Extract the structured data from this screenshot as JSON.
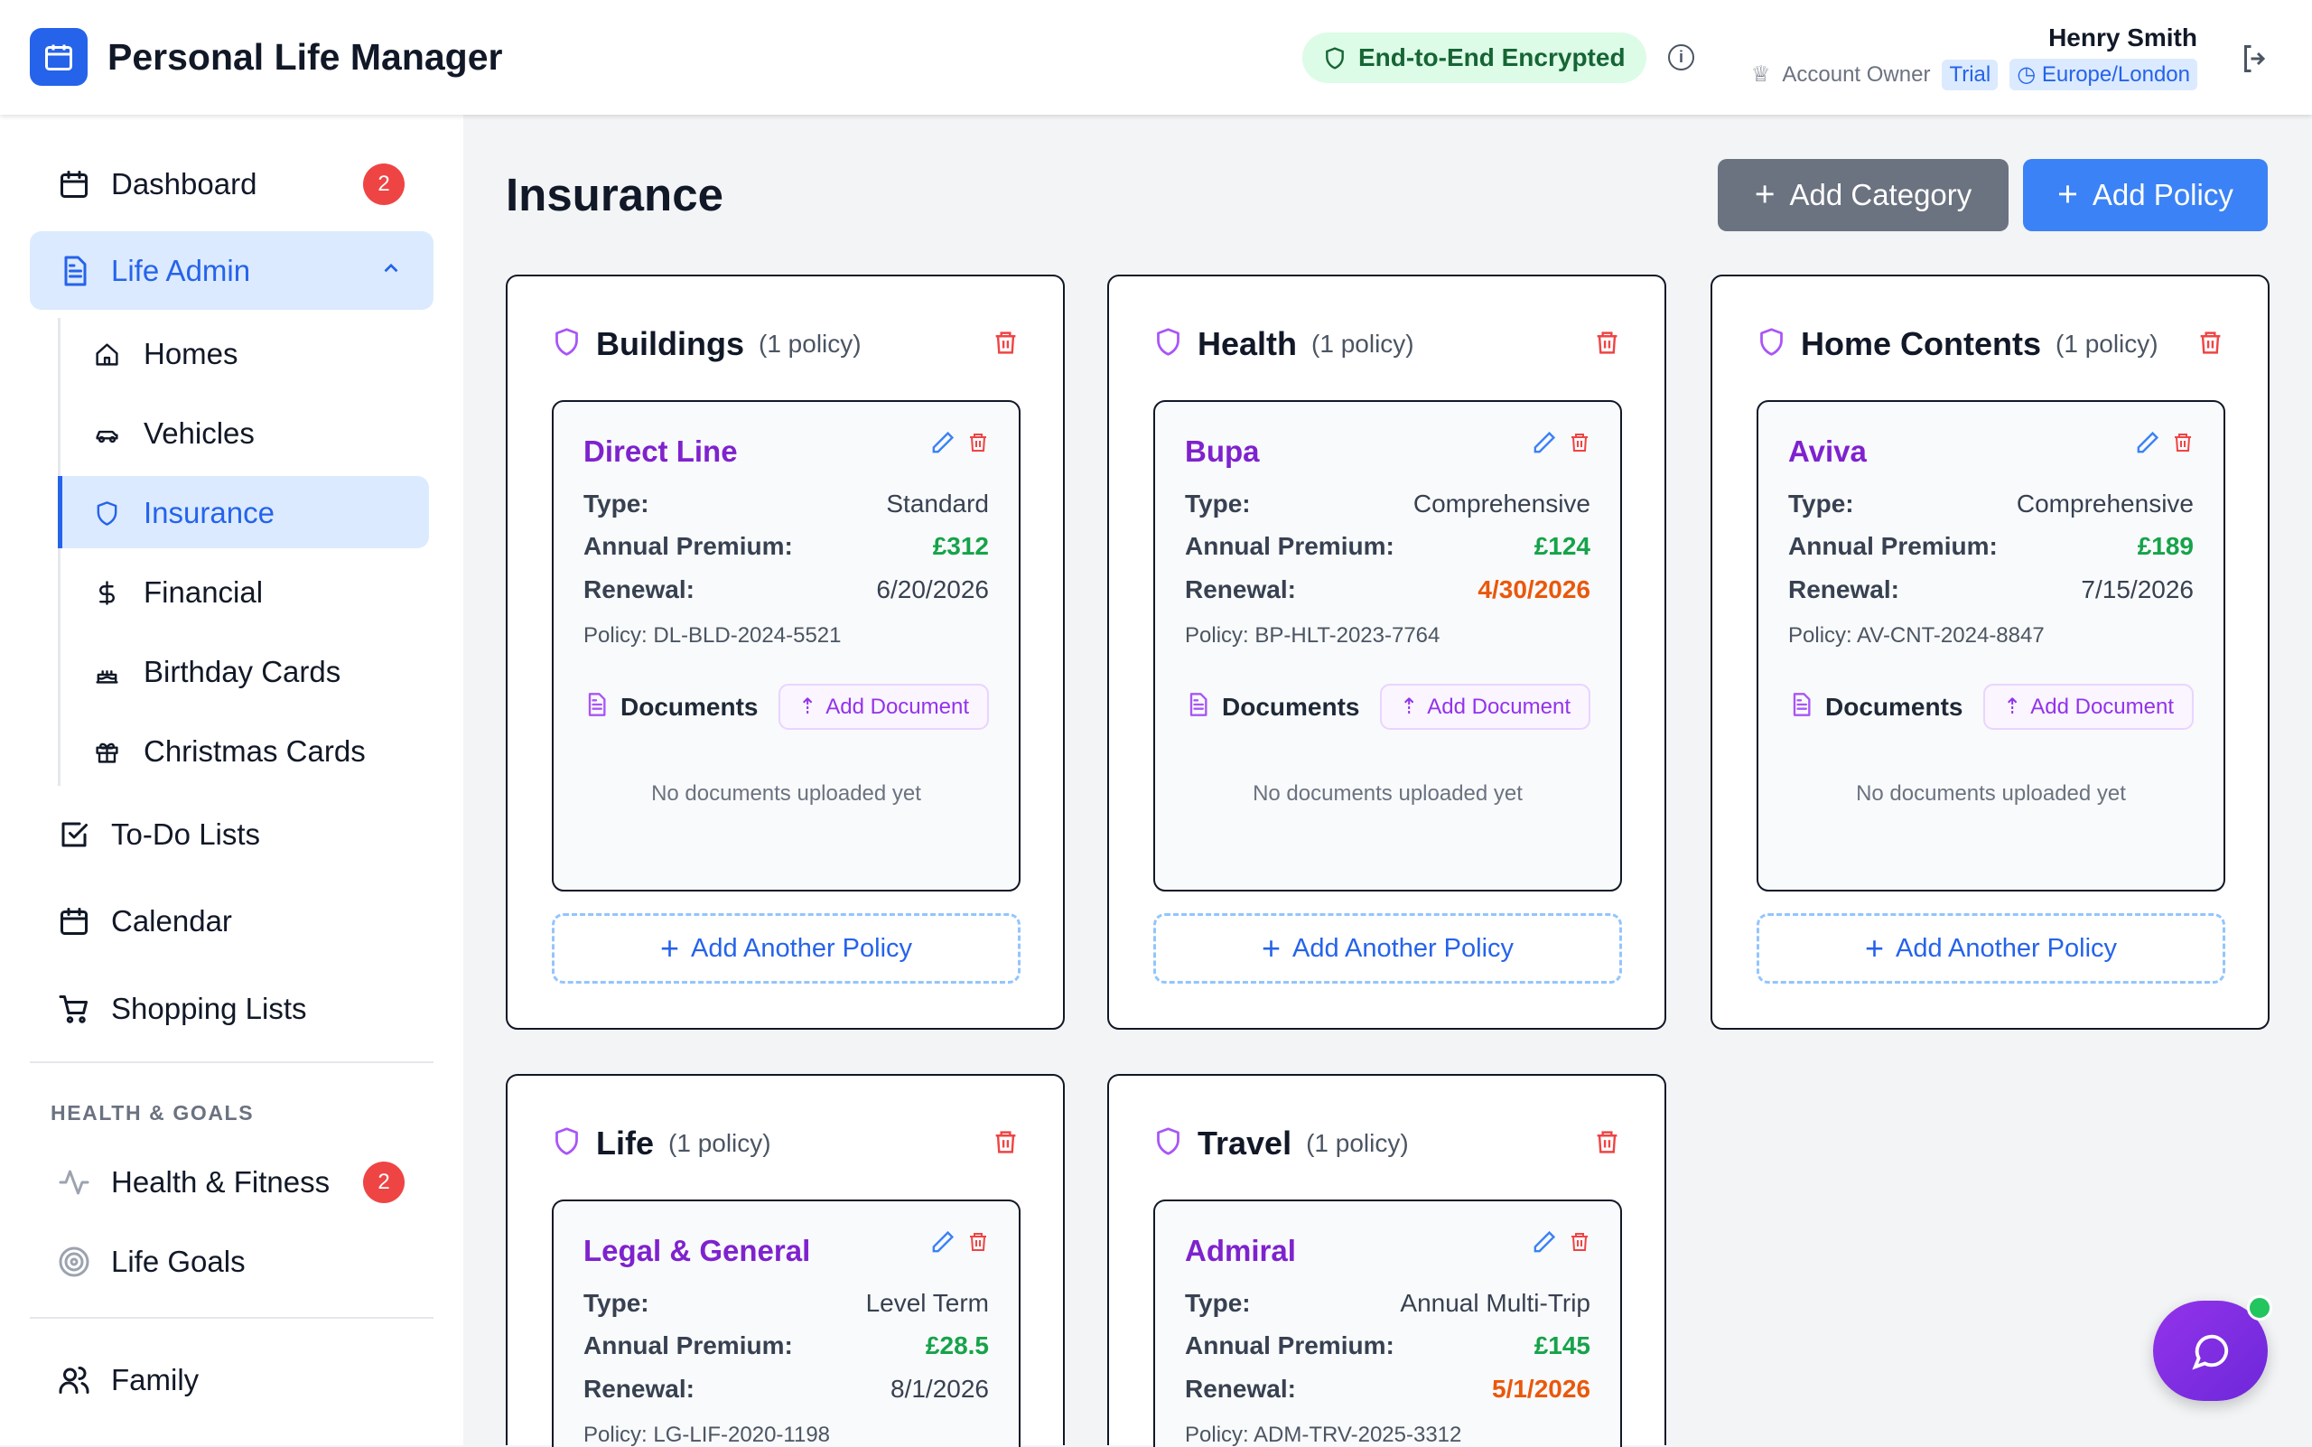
{
  "header": {
    "app_title": "Personal Life Manager",
    "encryption_badge": "End-to-End Encrypted",
    "user_name": "Henry Smith",
    "role": "Account Owner",
    "plan": "Trial",
    "timezone": "Europe/London"
  },
  "sidebar": {
    "items": [
      {
        "label": "Dashboard",
        "icon": "calendar-icon",
        "badge": "2"
      },
      {
        "label": "Life Admin",
        "icon": "file-icon",
        "expanded": true
      },
      {
        "label": "Homes",
        "icon": "home-icon"
      },
      {
        "label": "Vehicles",
        "icon": "car-icon"
      },
      {
        "label": "Insurance",
        "icon": "shield-icon",
        "active": true
      },
      {
        "label": "Financial",
        "icon": "dollar-icon"
      },
      {
        "label": "Birthday Cards",
        "icon": "cake-icon"
      },
      {
        "label": "Christmas Cards",
        "icon": "gift-icon"
      },
      {
        "label": "To-Do Lists",
        "icon": "checkbox-icon"
      },
      {
        "label": "Calendar",
        "icon": "calendar-icon"
      },
      {
        "label": "Shopping Lists",
        "icon": "cart-icon"
      },
      {
        "label": "Health & Fitness",
        "icon": "activity-icon",
        "badge": "2"
      },
      {
        "label": "Life Goals",
        "icon": "target-icon"
      },
      {
        "label": "Family",
        "icon": "users-icon"
      }
    ],
    "section_health": "HEALTH & GOALS"
  },
  "main": {
    "title": "Insurance",
    "add_category": "Add Category",
    "add_policy": "Add Policy",
    "documents_label": "Documents",
    "add_document": "Add Document",
    "no_documents": "No documents uploaded yet",
    "add_another": "Add Another Policy",
    "labels": {
      "type": "Type:",
      "premium": "Annual Premium:",
      "renewal": "Renewal:"
    },
    "categories": [
      {
        "name": "Buildings",
        "count": "(1 policy)",
        "policy": {
          "provider": "Direct Line",
          "type": "Standard",
          "premium": "£312",
          "renewal": "6/20/2026",
          "renewal_soon": false,
          "number": "Policy: DL-BLD-2024-5521"
        }
      },
      {
        "name": "Health",
        "count": "(1 policy)",
        "policy": {
          "provider": "Bupa",
          "type": "Comprehensive",
          "premium": "£124",
          "renewal": "4/30/2026",
          "renewal_soon": true,
          "number": "Policy: BP-HLT-2023-7764"
        }
      },
      {
        "name": "Home Contents",
        "count": "(1 policy)",
        "policy": {
          "provider": "Aviva",
          "type": "Comprehensive",
          "premium": "£189",
          "renewal": "7/15/2026",
          "renewal_soon": false,
          "number": "Policy: AV-CNT-2024-8847"
        }
      },
      {
        "name": "Life",
        "count": "(1 policy)",
        "policy": {
          "provider": "Legal & General",
          "type": "Level Term",
          "premium": "£28.5",
          "renewal": "8/1/2026",
          "renewal_soon": false,
          "number": "Policy: LG-LIF-2020-1198"
        }
      },
      {
        "name": "Travel",
        "count": "(1 policy)",
        "policy": {
          "provider": "Admiral",
          "type": "Annual Multi-Trip",
          "premium": "£145",
          "renewal": "5/1/2026",
          "renewal_soon": true,
          "number": "Policy: ADM-TRV-2025-3312"
        }
      }
    ]
  },
  "colors": {
    "accent": "#2563eb",
    "provider": "#7e22ce",
    "premium": "#16a34a",
    "renewal_soon": "#ea580c",
    "danger": "#ef4444"
  }
}
